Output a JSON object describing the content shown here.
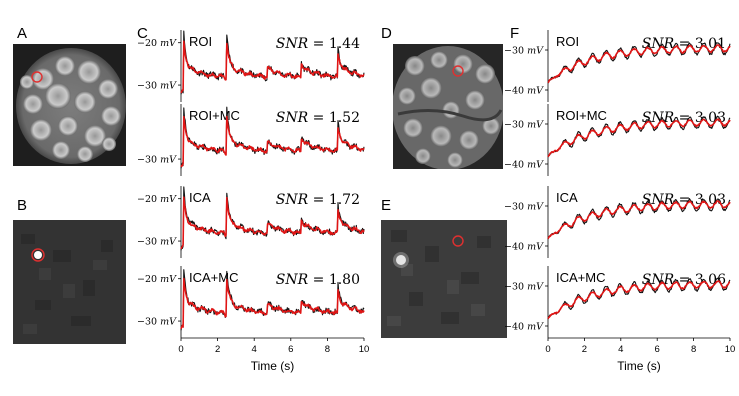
{
  "panel_letters": [
    "A",
    "B",
    "C",
    "D",
    "E",
    "F"
  ],
  "colors": {
    "trace_black": "#111111",
    "trace_red": "#e01515",
    "roi_circle": "#e03030"
  },
  "chart_data": [
    {
      "panel": "C",
      "type": "line",
      "xlabel": "Time (s)",
      "x_ticks": [
        "0",
        "2",
        "4",
        "6",
        "8",
        "10"
      ],
      "xlim": [
        0,
        10
      ],
      "ylim": [
        -34,
        -17
      ],
      "y_ticks": [
        {
          "value": -20,
          "label": "−20",
          "unit": "mV"
        },
        {
          "value": -30,
          "label": "−30",
          "unit": "mV"
        }
      ],
      "series": [
        {
          "color": "#111111"
        },
        {
          "color": "#e01515"
        }
      ],
      "subplots": [
        {
          "method": "ROI",
          "snr_symbol": "SNR",
          "snr_value": "1.44",
          "y_ticks_shown": [
            "−20",
            "−30"
          ]
        },
        {
          "method": "ROI+MC",
          "snr_symbol": "SNR",
          "snr_value": "1.52",
          "y_ticks_shown": [
            "−30"
          ]
        },
        {
          "method": "ICA",
          "snr_symbol": "SNR",
          "snr_value": "1.72",
          "y_ticks_shown": [
            "−20",
            "−30"
          ]
        },
        {
          "method": "ICA+MC",
          "snr_symbol": "SNR",
          "snr_value": "1.80",
          "y_ticks_shown": [
            "−20",
            "−30"
          ]
        }
      ]
    },
    {
      "panel": "F",
      "type": "line",
      "xlabel": "Time (s)",
      "x_ticks": [
        "0",
        "2",
        "4",
        "6",
        "8",
        "10"
      ],
      "xlim": [
        0,
        10
      ],
      "ylim": [
        -43,
        -25
      ],
      "y_ticks": [
        {
          "value": -30,
          "label": "−30",
          "unit": "mV"
        },
        {
          "value": -40,
          "label": "−40",
          "unit": "mV"
        }
      ],
      "series": [
        {
          "color": "#111111"
        },
        {
          "color": "#e01515"
        }
      ],
      "subplots": [
        {
          "method": "ROI",
          "snr_symbol": "SNR",
          "snr_value": "3.01"
        },
        {
          "method": "ROI+MC",
          "snr_symbol": "SNR",
          "snr_value": "3.03"
        },
        {
          "method": "ICA",
          "snr_symbol": "SNR",
          "snr_value": "3.03"
        },
        {
          "method": "ICA+MC",
          "snr_symbol": "SNR",
          "snr_value": "3.06"
        }
      ]
    }
  ]
}
